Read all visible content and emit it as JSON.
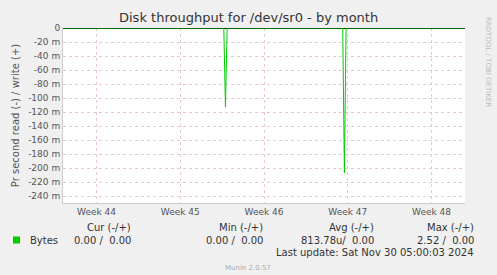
{
  "chart_data": {
    "type": "line",
    "title": "Disk throughput for /dev/sr0 - by month",
    "y_label": "Pr second read (-) / write (+)",
    "x": [
      43.6,
      45.52,
      45.54,
      45.56,
      46.94,
      46.96,
      46.98,
      48.4
    ],
    "series": [
      {
        "name": "Bytes",
        "color": "#00cc00",
        "values": [
          0,
          0,
          -0.113,
          0,
          0,
          -0.207,
          0,
          0
        ]
      }
    ],
    "xlim": [
      43.6,
      48.4
    ],
    "xticks": [
      {
        "value": 44,
        "label": "Week 44"
      },
      {
        "value": 45,
        "label": "Week 45"
      },
      {
        "value": 46,
        "label": "Week 46"
      },
      {
        "value": 47,
        "label": "Week 47"
      },
      {
        "value": 48,
        "label": "Week 48"
      }
    ],
    "ylim": [
      -0.25,
      0
    ],
    "yticks": [
      0,
      {
        "value": -0.02,
        "label": "-20 m"
      },
      {
        "value": -0.04,
        "label": "-40 m"
      },
      {
        "value": -0.06,
        "label": "-60 m"
      },
      {
        "value": -0.08,
        "label": "-80 m"
      },
      {
        "value": -0.1,
        "label": "-100 m"
      },
      {
        "value": -0.12,
        "label": "-120 m"
      },
      {
        "value": -0.14,
        "label": "-140 m"
      },
      {
        "value": -0.16,
        "label": "-160 m"
      },
      {
        "value": -0.18,
        "label": "-180 m"
      },
      {
        "value": -0.2,
        "label": "-200 m"
      },
      {
        "value": -0.22,
        "label": "-220 m"
      },
      {
        "value": -0.24,
        "label": "-240 m"
      }
    ],
    "grid": true,
    "summary": {
      "headers": [
        "Cur (-/+)",
        "Min (-/+)",
        "Avg (-/+)",
        "Max (-/+)"
      ],
      "rows": [
        {
          "name": "Bytes",
          "cells": [
            "0.00 /  0.00",
            "0.00 /  0.00",
            "813.78u/  0.00",
            "2.52 /  0.00"
          ]
        }
      ]
    },
    "footer": "Last update: Sat Nov 30 05:00:03 2024",
    "credit": "Munin 2.0.57",
    "watermark": "RRDTOOL / TOBI OETIKER"
  }
}
